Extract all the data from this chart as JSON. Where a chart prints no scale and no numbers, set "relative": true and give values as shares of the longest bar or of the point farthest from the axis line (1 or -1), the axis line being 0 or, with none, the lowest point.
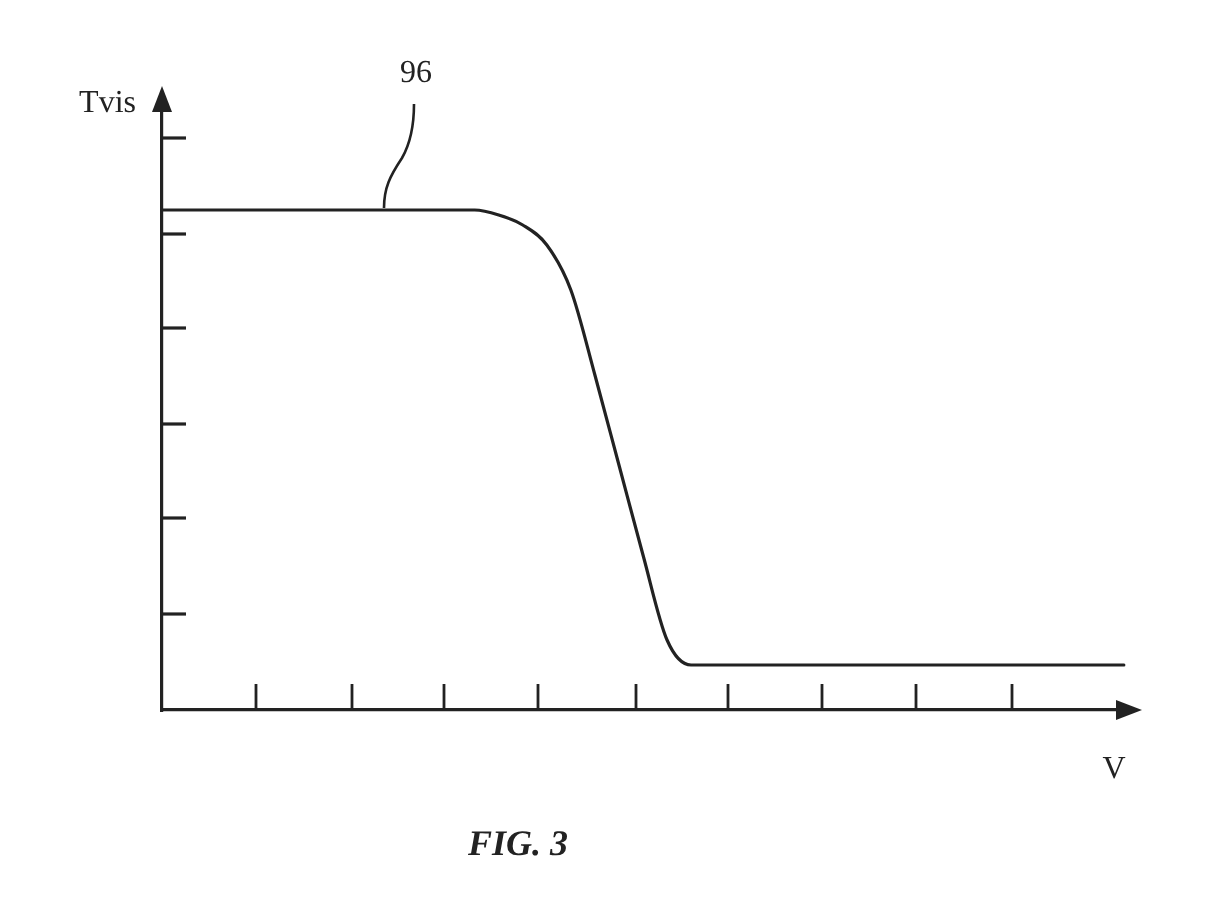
{
  "chart_data": {
    "type": "line",
    "relative": true,
    "xlabel": "V",
    "ylabel": "Tvis",
    "tick_labels": false,
    "annotations": [
      "96",
      "FIG. 3"
    ],
    "categories": [
      null,
      null,
      null,
      null,
      null,
      null,
      null,
      null,
      null,
      null,
      null,
      null,
      null,
      null,
      null,
      null,
      null,
      null,
      null,
      null,
      null,
      null,
      null,
      null,
      null,
      null,
      null,
      null,
      null,
      null,
      null,
      null,
      null,
      null,
      null,
      null,
      null,
      null,
      null,
      null,
      null
    ],
    "values": [
      1,
      1,
      1,
      1,
      1,
      1,
      1,
      1,
      1,
      1,
      1,
      1,
      1,
      1,
      0.99,
      0.97,
      0.93,
      0.84,
      0.67,
      0.49,
      0.31,
      0.14,
      0.09,
      0.09,
      0.09,
      0.09,
      0.09,
      0.09,
      0.09,
      0.09,
      0.09,
      0.09,
      0.09,
      0.09,
      0.09,
      0.09,
      0.09,
      0.09,
      0.09,
      0.09,
      0.09
    ],
    "color": "#222222"
  }
}
